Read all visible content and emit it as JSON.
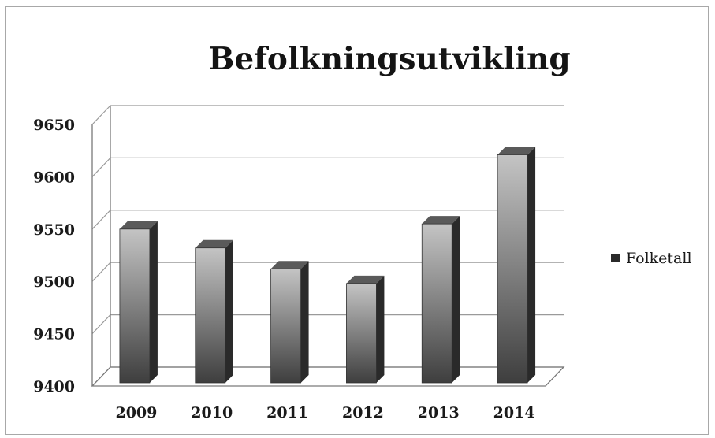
{
  "chart_data": {
    "type": "bar",
    "title": "Befolkningsutvikling",
    "xlabel": "",
    "ylabel": "",
    "categories": [
      "2009",
      "2010",
      "2011",
      "2012",
      "2013",
      "2014"
    ],
    "series": [
      {
        "name": "Folketall",
        "values": [
          9550,
          9532,
          9512,
          9498,
          9555,
          9621
        ]
      }
    ],
    "ylim": [
      9400,
      9650
    ],
    "yticks": [
      "9650",
      "9600",
      "9550",
      "9500",
      "9450",
      "9400"
    ],
    "grid": true,
    "legend_position": "right",
    "style": "3d-column",
    "colors": {
      "bar_front_light": "#c4c4c4",
      "bar_front_dark": "#3e3e3e",
      "bar_side": "#2a2a2a",
      "bar_top": "#5a5a5a",
      "gridline": "#9a9a9a"
    }
  }
}
